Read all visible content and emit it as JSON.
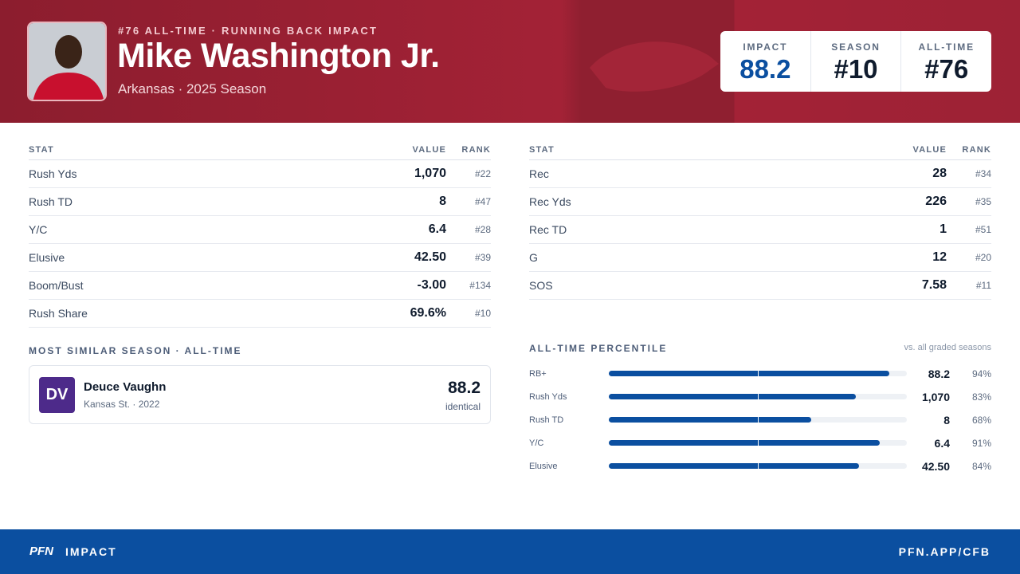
{
  "header": {
    "kicker": "#76 ALL-TIME · RUNNING BACK IMPACT",
    "name": "Mike Washington Jr.",
    "subtitle": "Arkansas · 2025 Season",
    "boxes": [
      {
        "label": "IMPACT",
        "value": "88.2"
      },
      {
        "label": "SEASON",
        "value": "#10"
      },
      {
        "label": "ALL-TIME",
        "value": "#76"
      }
    ]
  },
  "tables": [
    {
      "columns": [
        "STAT",
        "VALUE",
        "RANK"
      ],
      "rows": [
        [
          "Rush Yds",
          "1,070",
          "#22"
        ],
        [
          "Rush TD",
          "8",
          "#47"
        ],
        [
          "Y/C",
          "6.4",
          "#28"
        ],
        [
          "Elusive",
          "42.50",
          "#39"
        ],
        [
          "Boom/Bust",
          "-3.00",
          "#134"
        ],
        [
          "Rush Share",
          "69.6%",
          "#10"
        ]
      ]
    },
    {
      "columns": [
        "STAT",
        "VALUE",
        "RANK"
      ],
      "rows": [
        [
          "Rec",
          "28",
          "#34"
        ],
        [
          "Rec Yds",
          "226",
          "#35"
        ],
        [
          "Rec TD",
          "1",
          "#51"
        ],
        [
          "G",
          "12",
          "#20"
        ],
        [
          "SOS",
          "7.58",
          "#11"
        ]
      ]
    }
  ],
  "similar": {
    "title": "MOST SIMILAR SEASON · ALL-TIME",
    "initials": "DV",
    "name": "Deuce Vaughn",
    "meta": "Kansas St. · 2022",
    "score": "88.2",
    "note": "identical"
  },
  "percentile": {
    "title": "ALL-TIME PERCENTILE",
    "note": "vs. all graded seasons",
    "rows": [
      {
        "stat": "RB+",
        "value": "88.2",
        "percentile": 94,
        "percentile_label": "94%"
      },
      {
        "stat": "Rush Yds",
        "value": "1,070",
        "percentile": 83,
        "percentile_label": "83%"
      },
      {
        "stat": "Rush TD",
        "value": "8",
        "percentile": 68,
        "percentile_label": "68%"
      },
      {
        "stat": "Y/C",
        "value": "6.4",
        "percentile": 91,
        "percentile_label": "91%"
      },
      {
        "stat": "Elusive",
        "value": "42.50",
        "percentile": 84,
        "percentile_label": "84%"
      }
    ]
  },
  "footer": {
    "logo": "PFN",
    "brand": "IMPACT",
    "url": "PFN.APP/CFB"
  }
}
